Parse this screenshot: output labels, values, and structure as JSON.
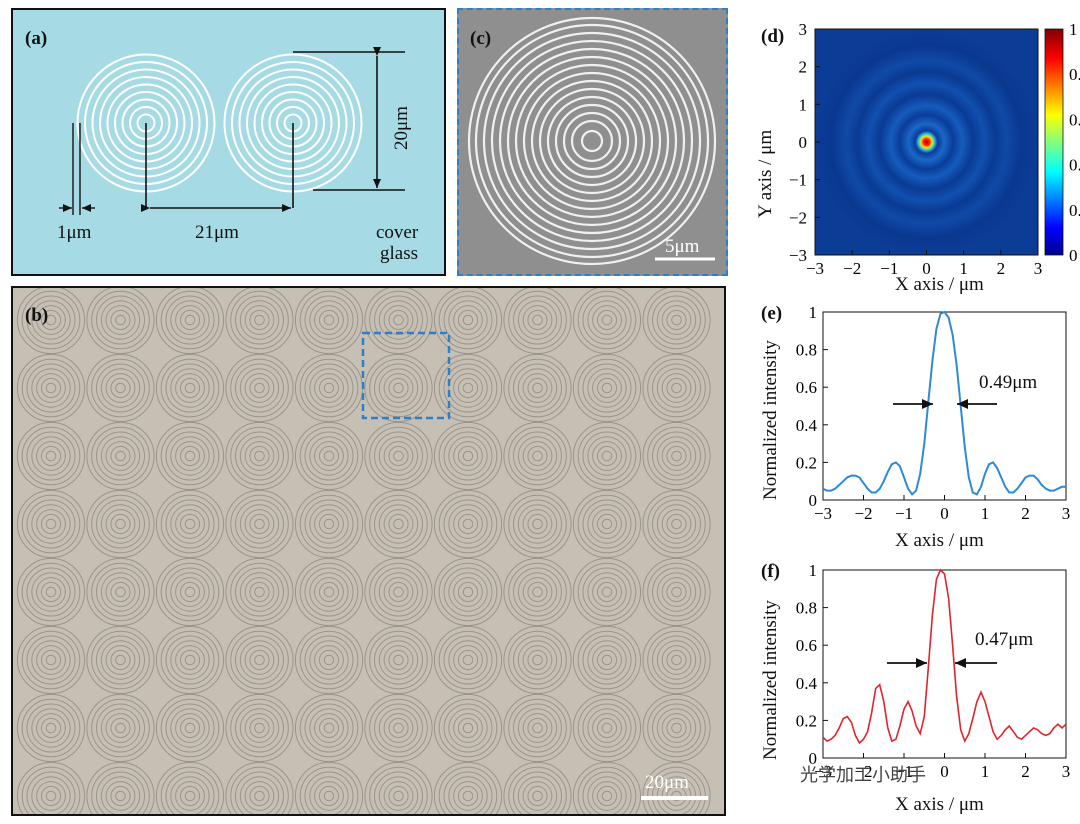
{
  "panel_a": {
    "label": "(a)",
    "dim_1um": "1μm",
    "dim_21um": "21μm",
    "dim_20um": "20μm",
    "caption_line1": "cover",
    "caption_line2": "glass"
  },
  "panel_b": {
    "label": "(b)",
    "scale_bar": "20μm",
    "grid_rows": 8,
    "grid_cols": 10
  },
  "panel_c": {
    "label": "(c)",
    "scale_bar": "5μm"
  },
  "panel_d": {
    "label": "(d)",
    "xlabel": "X axis / μm",
    "ylabel": "Y axis / μm",
    "x_ticks": [
      "−3",
      "−2",
      "−1",
      "0",
      "1",
      "2",
      "3"
    ],
    "y_ticks": [
      "3",
      "2",
      "1",
      "0",
      "−1",
      "−2",
      "−3"
    ],
    "colorbar_ticks": [
      "1",
      "0.",
      "0.",
      "0.",
      "0.",
      "0"
    ]
  },
  "panel_e": {
    "label": "(e)",
    "annotation": "0.49μm",
    "xlabel": "X axis / μm",
    "ylabel": "Normalized intensity",
    "x_ticks": [
      "−3",
      "−2",
      "−1",
      "0",
      "1",
      "2",
      "3"
    ],
    "y_ticks": [
      "1",
      "0.8",
      "0.6",
      "0.4",
      "0.2",
      "0"
    ]
  },
  "panel_f": {
    "label": "(f)",
    "annotation": "0.47μm",
    "xlabel": "X axis / μm",
    "ylabel": "Normalized intensity",
    "x_ticks": [
      "−3",
      "−2",
      "−1",
      "0",
      "1",
      "2",
      "3"
    ],
    "y_ticks": [
      "1",
      "0.8",
      "0.6",
      "0.4",
      "0.2",
      "0"
    ]
  },
  "watermark": "光学加工小助手",
  "colors": {
    "line_e": "#2e8ad6",
    "line_f": "#e0232c",
    "highlight_box": "#2f7fc8"
  },
  "chart_data": [
    {
      "type": "line",
      "panel": "e",
      "x": [
        -3,
        -2.9,
        -2.8,
        -2.7,
        -2.6,
        -2.5,
        -2.4,
        -2.3,
        -2.2,
        -2.1,
        -2,
        -1.9,
        -1.8,
        -1.7,
        -1.6,
        -1.5,
        -1.4,
        -1.3,
        -1.2,
        -1.1,
        -1,
        -0.9,
        -0.8,
        -0.7,
        -0.6,
        -0.5,
        -0.4,
        -0.3,
        -0.2,
        -0.1,
        0,
        0.1,
        0.2,
        0.3,
        0.4,
        0.5,
        0.6,
        0.7,
        0.8,
        0.9,
        1,
        1.1,
        1.2,
        1.3,
        1.4,
        1.5,
        1.6,
        1.7,
        1.8,
        1.9,
        2,
        2.1,
        2.2,
        2.3,
        2.4,
        2.5,
        2.6,
        2.7,
        2.8,
        2.9,
        3
      ],
      "y": [
        0.06,
        0.05,
        0.05,
        0.06,
        0.08,
        0.1,
        0.12,
        0.13,
        0.13,
        0.12,
        0.09,
        0.06,
        0.04,
        0.04,
        0.06,
        0.1,
        0.15,
        0.19,
        0.2,
        0.18,
        0.12,
        0.06,
        0.03,
        0.05,
        0.14,
        0.3,
        0.52,
        0.74,
        0.91,
        0.99,
        1,
        0.97,
        0.88,
        0.72,
        0.5,
        0.28,
        0.12,
        0.04,
        0.03,
        0.07,
        0.14,
        0.19,
        0.2,
        0.17,
        0.12,
        0.07,
        0.04,
        0.04,
        0.06,
        0.09,
        0.12,
        0.13,
        0.13,
        0.11,
        0.08,
        0.06,
        0.05,
        0.05,
        0.06,
        0.07,
        0.07
      ],
      "xlim": [
        -3,
        3
      ],
      "ylim": [
        0,
        1
      ],
      "xlabel": "X axis / μm",
      "ylabel": "Normalized intensity"
    },
    {
      "type": "line",
      "panel": "f",
      "x": [
        -3,
        -2.9,
        -2.8,
        -2.7,
        -2.6,
        -2.5,
        -2.4,
        -2.3,
        -2.2,
        -2.1,
        -2,
        -1.9,
        -1.8,
        -1.7,
        -1.6,
        -1.5,
        -1.4,
        -1.3,
        -1.2,
        -1.1,
        -1,
        -0.9,
        -0.8,
        -0.7,
        -0.6,
        -0.5,
        -0.4,
        -0.3,
        -0.2,
        -0.1,
        0,
        0.1,
        0.2,
        0.3,
        0.4,
        0.5,
        0.6,
        0.7,
        0.8,
        0.9,
        1,
        1.1,
        1.2,
        1.3,
        1.4,
        1.5,
        1.6,
        1.7,
        1.8,
        1.9,
        2,
        2.1,
        2.2,
        2.3,
        2.4,
        2.5,
        2.6,
        2.7,
        2.8,
        2.9,
        3
      ],
      "y": [
        0.11,
        0.09,
        0.1,
        0.12,
        0.16,
        0.21,
        0.22,
        0.19,
        0.12,
        0.08,
        0.1,
        0.14,
        0.24,
        0.37,
        0.39,
        0.3,
        0.16,
        0.09,
        0.1,
        0.17,
        0.26,
        0.3,
        0.25,
        0.17,
        0.13,
        0.22,
        0.48,
        0.76,
        0.95,
        1,
        0.98,
        0.85,
        0.6,
        0.33,
        0.15,
        0.09,
        0.13,
        0.21,
        0.3,
        0.35,
        0.3,
        0.22,
        0.14,
        0.1,
        0.12,
        0.15,
        0.17,
        0.14,
        0.11,
        0.1,
        0.12,
        0.14,
        0.16,
        0.15,
        0.13,
        0.12,
        0.13,
        0.16,
        0.18,
        0.16,
        0.18
      ],
      "xlim": [
        -3,
        3
      ],
      "ylim": [
        0,
        1
      ],
      "xlabel": "X axis / μm",
      "ylabel": "Normalized intensity"
    }
  ]
}
